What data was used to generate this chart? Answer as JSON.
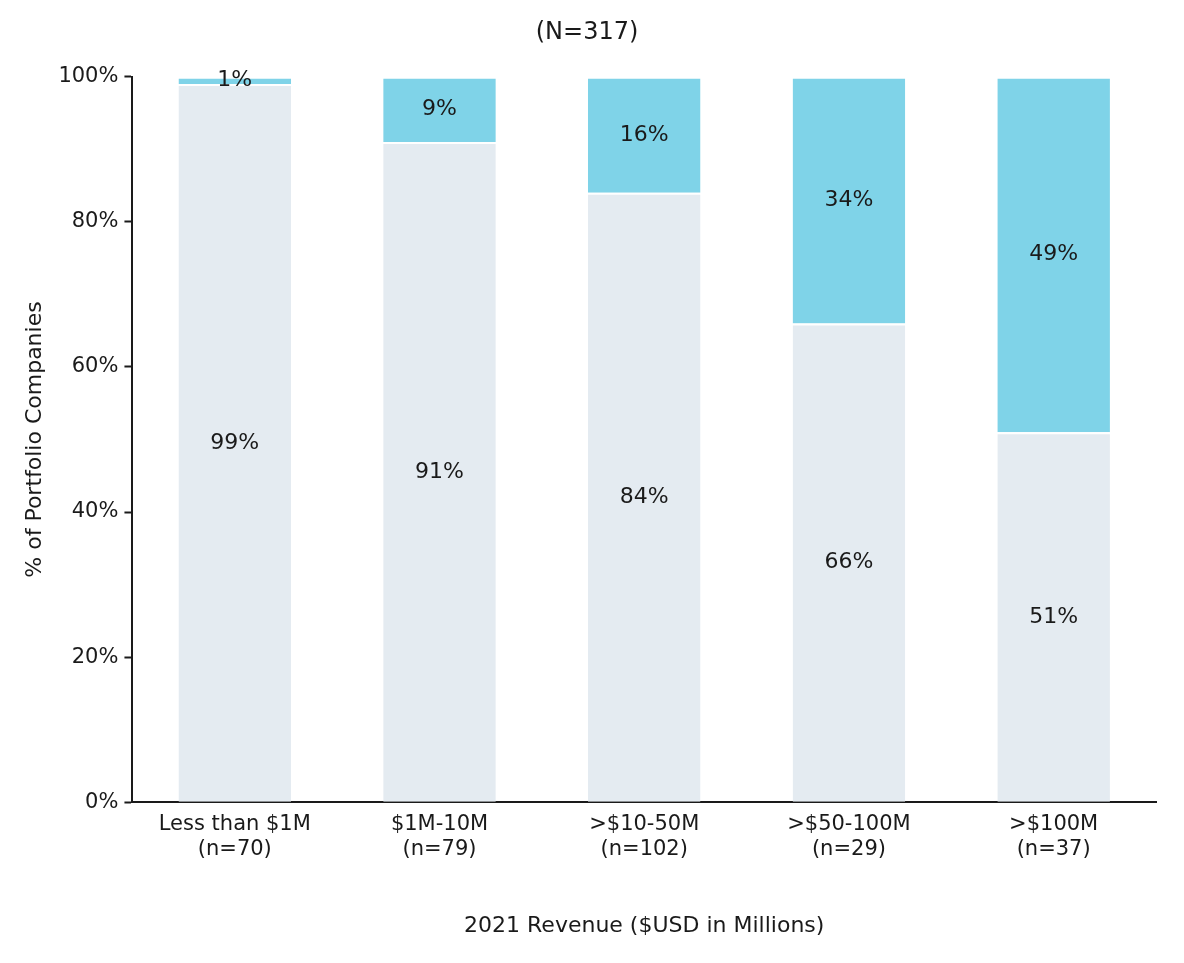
{
  "chart_data": {
    "type": "bar",
    "title": "(N=317)",
    "xlabel": "2021 Revenue ($USD in Millions)",
    "ylabel": "% of Portfolio Companies",
    "categories": [
      "Less than $1M\n(n=70)",
      "$1M-10M\n(n=79)",
      ">$10-50M\n(n=102)",
      ">$50-100M\n(n=29)",
      ">$100M\n(n=37)"
    ],
    "stacked": true,
    "series": [
      {
        "color": "#e4ebf1",
        "values": [
          99,
          91,
          84,
          66,
          51
        ],
        "value_labels": [
          "99%",
          "91%",
          "84%",
          "66%",
          "51%"
        ]
      },
      {
        "color": "#7fd3e8",
        "values": [
          1,
          9,
          16,
          34,
          49
        ],
        "value_labels": [
          "1%",
          "9%",
          "16%",
          "34%",
          "49%"
        ]
      }
    ],
    "ylim": [
      0,
      100
    ],
    "yticks": [
      {
        "value": 0,
        "label": "0%"
      },
      {
        "value": 20,
        "label": "20%"
      },
      {
        "value": 40,
        "label": "40%"
      },
      {
        "value": 60,
        "label": "60%"
      },
      {
        "value": 80,
        "label": "80%"
      },
      {
        "value": 100,
        "label": "100%"
      }
    ],
    "grid": false,
    "legend": false
  }
}
